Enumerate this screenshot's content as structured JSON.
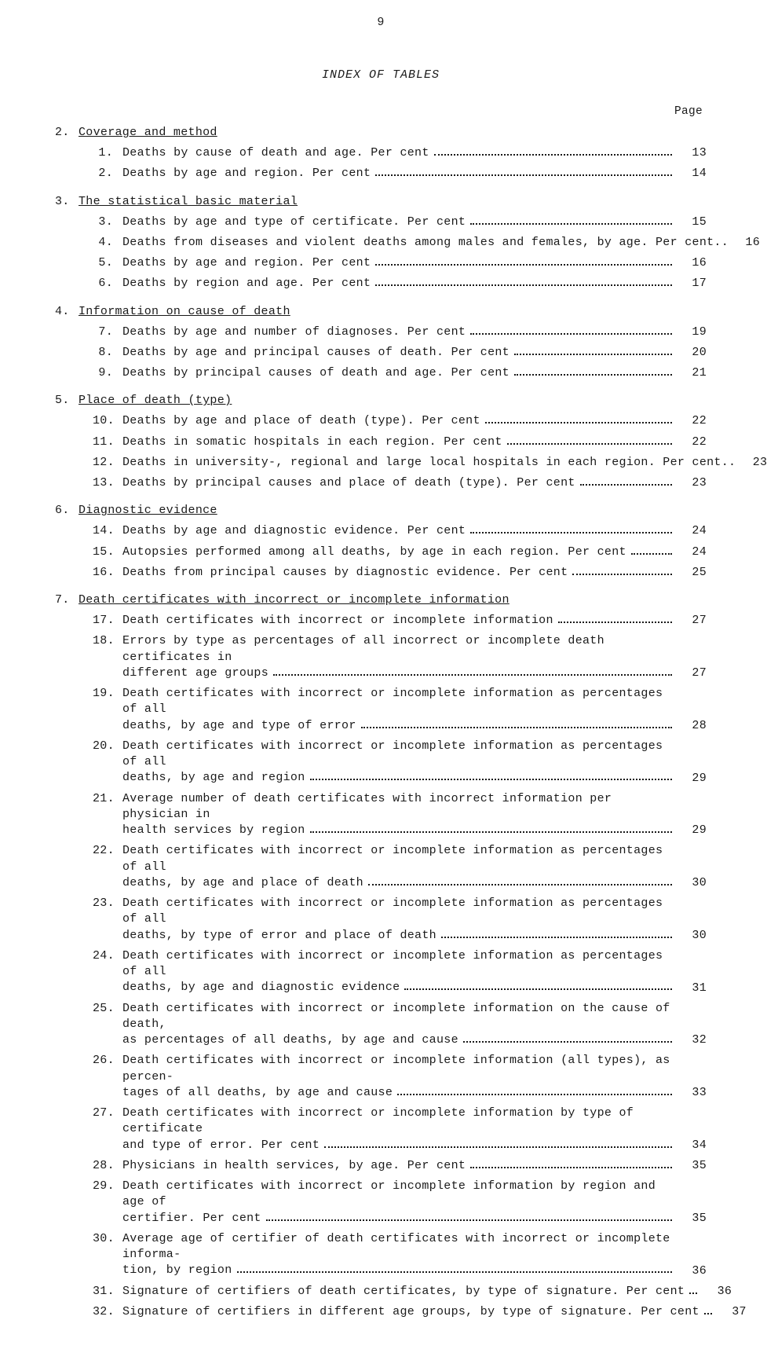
{
  "page_number": "9",
  "title": "INDEX OF TABLES",
  "page_header_label": "Page",
  "sections": [
    {
      "num": "2.",
      "title": "Coverage and method",
      "entries": [
        {
          "num": "1.",
          "lines": [
            "Deaths by cause of death and age.  Per cent"
          ],
          "page": "13"
        },
        {
          "num": "2.",
          "lines": [
            "Deaths by age and region.  Per cent"
          ],
          "page": "14"
        }
      ]
    },
    {
      "num": "3.",
      "title": "The statistical basic material",
      "entries": [
        {
          "num": "3.",
          "lines": [
            "Deaths by age and type of certificate.  Per cent"
          ],
          "page": "15"
        },
        {
          "num": "4.",
          "lines": [
            "Deaths from diseases and violent deaths among males and females, by age.  Per cent"
          ],
          "nodots": true,
          "page": "16"
        },
        {
          "num": "5.",
          "lines": [
            "Deaths by age and region.  Per cent"
          ],
          "page": "16"
        },
        {
          "num": "6.",
          "lines": [
            "Deaths by region and age.  Per cent"
          ],
          "page": "17"
        }
      ]
    },
    {
      "num": "4.",
      "title": "Information on cause of death",
      "entries": [
        {
          "num": "7.",
          "lines": [
            "Deaths by age and number of diagnoses.  Per cent"
          ],
          "page": "19"
        },
        {
          "num": "8.",
          "lines": [
            "Deaths by age and principal causes of death.  Per cent"
          ],
          "page": "20"
        },
        {
          "num": "9.",
          "lines": [
            "Deaths by principal causes of death and age.  Per cent"
          ],
          "page": "21"
        }
      ]
    },
    {
      "num": "5.",
      "title": "Place of death (type)",
      "entries": [
        {
          "num": "10.",
          "lines": [
            "Deaths by age and place of death (type).  Per cent"
          ],
          "page": "22"
        },
        {
          "num": "11.",
          "lines": [
            "Deaths in somatic hospitals in each region.  Per cent"
          ],
          "page": "22"
        },
        {
          "num": "12.",
          "lines": [
            "Deaths in university-, regional and large local hospitals in each region.  Per cent"
          ],
          "nodots": true,
          "page": "23"
        },
        {
          "num": "13.",
          "lines": [
            "Deaths by principal causes and place of death (type).  Per cent"
          ],
          "page": "23"
        }
      ]
    },
    {
      "num": "6.",
      "title": "Diagnostic evidence",
      "entries": [
        {
          "num": "14.",
          "lines": [
            "Deaths by age and diagnostic evidence.  Per cent"
          ],
          "page": "24"
        },
        {
          "num": "15.",
          "lines": [
            "Autopsies performed among all deaths, by age in each region.  Per cent"
          ],
          "page": "24"
        },
        {
          "num": "16.",
          "lines": [
            "Deaths from principal causes by diagnostic evidence.  Per cent"
          ],
          "page": "25"
        }
      ]
    },
    {
      "num": "7.",
      "title": "Death certificates with incorrect or incomplete information",
      "entries": [
        {
          "num": "17.",
          "lines": [
            "Death certificates with incorrect or incomplete information"
          ],
          "page": "27"
        },
        {
          "num": "18.",
          "lines": [
            "Errors by type as percentages of all incorrect or incomplete death certificates in",
            "different age groups"
          ],
          "page": "27"
        },
        {
          "num": "19.",
          "lines": [
            "Death certificates with incorrect or incomplete information as percentages of all",
            "deaths, by age and type of error"
          ],
          "page": "28"
        },
        {
          "num": "20.",
          "lines": [
            "Death certificates with incorrect or incomplete information as percentages of all",
            "deaths, by age and region"
          ],
          "page": "29"
        },
        {
          "num": "21.",
          "lines": [
            "Average number of death certificates with incorrect information per physician in",
            "health services by region"
          ],
          "page": "29"
        },
        {
          "num": "22.",
          "lines": [
            "Death certificates with incorrect or incomplete information as percentages of all",
            "deaths, by age and place of death"
          ],
          "page": "30"
        },
        {
          "num": "23.",
          "lines": [
            "Death certificates with incorrect or incomplete information as percentages of all",
            "deaths, by type of error and place of death"
          ],
          "page": "30"
        },
        {
          "num": "24.",
          "lines": [
            "Death certificates with incorrect or incomplete information as percentages of all",
            "deaths, by age and diagnostic evidence"
          ],
          "page": "31"
        },
        {
          "num": "25.",
          "lines": [
            "Death certificates with incorrect or incomplete information on the cause of death,",
            "as percentages of all deaths, by age and cause"
          ],
          "page": "32"
        },
        {
          "num": "26.",
          "lines": [
            "Death certificates with incorrect or incomplete information (all types), as percen-",
            "tages of all deaths, by age and cause"
          ],
          "page": "33"
        },
        {
          "num": "27.",
          "lines": [
            "Death certificates with incorrect or incomplete information by type of certificate",
            "and type of error.  Per cent"
          ],
          "page": "34"
        },
        {
          "num": "28.",
          "lines": [
            "Physicians in health services, by age.  Per cent"
          ],
          "page": "35"
        },
        {
          "num": "29.",
          "lines": [
            "Death certificates with incorrect or incomplete information by region and age of",
            "certifier.  Per cent"
          ],
          "page": "35"
        },
        {
          "num": "30.",
          "lines": [
            "Average age of certifier of death certificates with incorrect or incomplete informa-",
            "tion, by region"
          ],
          "page": "36"
        },
        {
          "num": "31.",
          "lines": [
            "Signature of certifiers of death certificates, by type of signature.  Per cent"
          ],
          "page": "36"
        },
        {
          "num": "32.",
          "lines": [
            "Signature of certifiers in different age groups, by type of signature.  Per cent"
          ],
          "page": "37"
        }
      ]
    }
  ]
}
